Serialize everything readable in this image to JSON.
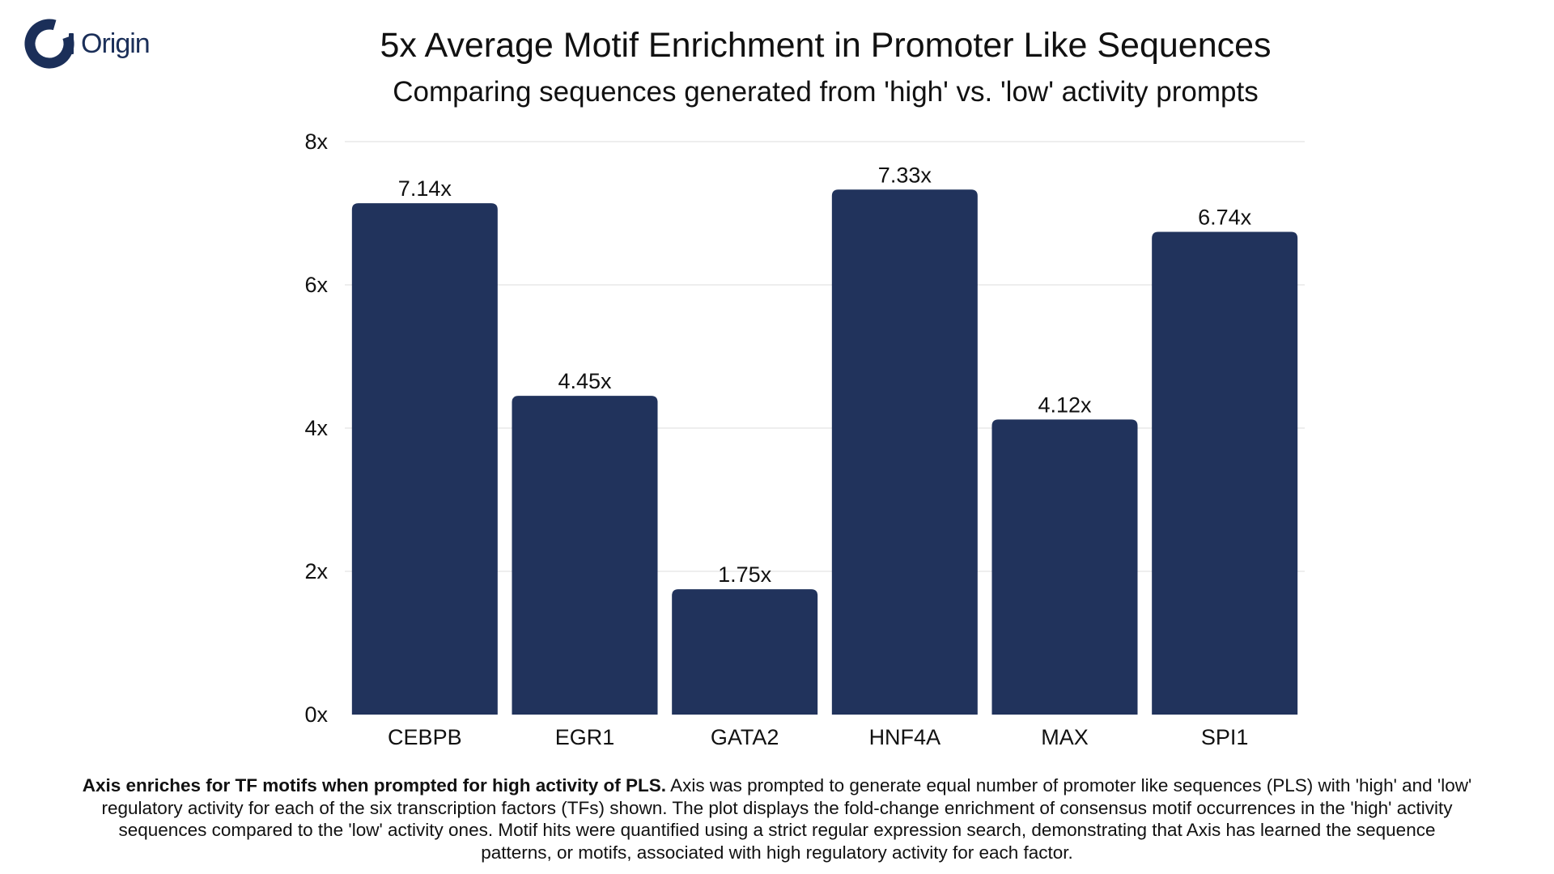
{
  "logo": {
    "text": "Origin",
    "color": "#1b2f59"
  },
  "chart_data": {
    "type": "bar",
    "title": "5x Average Motif Enrichment in Promoter Like Sequences",
    "subtitle": "Comparing sequences generated from 'high' vs. 'low' activity prompts",
    "xlabel": "",
    "ylabel": "",
    "categories": [
      "CEBPB",
      "EGR1",
      "GATA2",
      "HNF4A",
      "MAX",
      "SPI1"
    ],
    "values": [
      7.14,
      4.45,
      1.75,
      7.33,
      4.12,
      6.74
    ],
    "value_labels": [
      "7.14x",
      "4.45x",
      "1.75x",
      "7.33x",
      "4.12x",
      "6.74x"
    ],
    "ylim": [
      0,
      8
    ],
    "y_ticks": [
      {
        "value": 0,
        "label": "0x"
      },
      {
        "value": 2,
        "label": "2x"
      },
      {
        "value": 4,
        "label": "4x"
      },
      {
        "value": 6,
        "label": "6x"
      },
      {
        "value": 8,
        "label": "8x"
      }
    ],
    "grid": true,
    "bar_color": "#21335c",
    "grid_color": "#e4e4e4"
  },
  "caption": {
    "lead": "Axis enriches for TF motifs when prompted for high activity of PLS.",
    "body": "Axis was prompted to generate equal number of promoter like sequences (PLS) with 'high' and 'low' regulatory activity for each of the six transcription factors (TFs) shown. The plot displays the fold-change enrichment of consensus motif occurrences in the 'high' activity sequences compared to the 'low' activity ones. Motif hits were quantified using a strict regular expression search, demonstrating that Axis has learned the sequence patterns, or motifs, associated with high regulatory activity for each factor."
  }
}
